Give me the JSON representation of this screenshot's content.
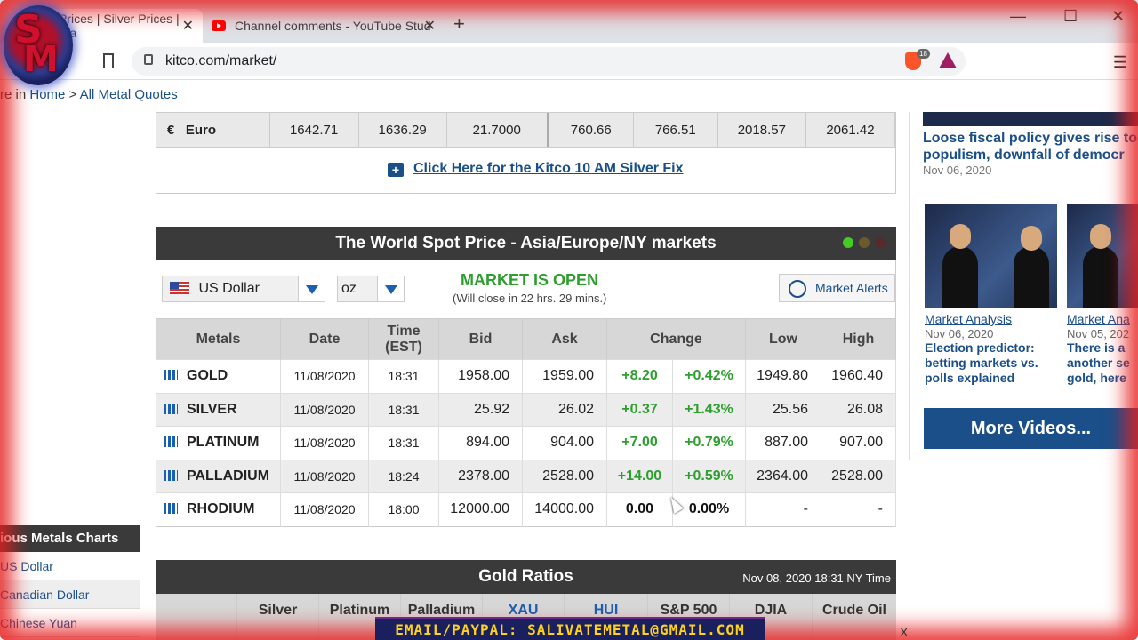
{
  "browser": {
    "tabs": [
      {
        "label": "Prices | Silver Prices | Pla",
        "active": true
      },
      {
        "label": "Channel comments - YouTube Stud",
        "active": false
      }
    ],
    "new_tab": "+",
    "close": "✕",
    "url": "kitco.com/market/",
    "brave_badge": "18",
    "win_min": "—",
    "win_max": "☐",
    "win_close": "✕",
    "menu": "☰"
  },
  "breadcrumb": {
    "prefix": "re in ",
    "home": "Home",
    "sep": " > ",
    "current": "All Metal Quotes"
  },
  "euro_row": {
    "symbol": "€",
    "label": "Euro",
    "values": [
      "1642.71",
      "1636.29",
      "21.7000",
      "760.66",
      "766.51",
      "2018.57",
      "2061.42"
    ]
  },
  "silver_fix": {
    "label": "Click Here for the Kitco 10 AM Silver Fix",
    "icon": "+"
  },
  "spot": {
    "title": "The World Spot Price - Asia/Europe/NY markets",
    "currency": "US Dollar",
    "unit": "oz",
    "status": "MARKET IS OPEN",
    "close_note": "(Will close in 22 hrs. 29 mins.)",
    "alerts": "Market Alerts",
    "dot_colors": [
      "#44cc22",
      "#6b5a2a",
      "#5a2a2a"
    ],
    "headers": [
      "Metals",
      "Date",
      "Time (EST)",
      "Bid",
      "Ask",
      "Change",
      "Low",
      "High"
    ],
    "rows": [
      {
        "metal": "GOLD",
        "date": "11/08/2020",
        "time": "18:31",
        "bid": "1958.00",
        "ask": "1959.00",
        "chg": "+8.20",
        "pct": "+0.42%",
        "low": "1949.80",
        "high": "1960.40"
      },
      {
        "metal": "SILVER",
        "date": "11/08/2020",
        "time": "18:31",
        "bid": "25.92",
        "ask": "26.02",
        "chg": "+0.37",
        "pct": "+1.43%",
        "low": "25.56",
        "high": "26.08"
      },
      {
        "metal": "PLATINUM",
        "date": "11/08/2020",
        "time": "18:31",
        "bid": "894.00",
        "ask": "904.00",
        "chg": "+7.00",
        "pct": "+0.79%",
        "low": "887.00",
        "high": "907.00"
      },
      {
        "metal": "PALLADIUM",
        "date": "11/08/2020",
        "time": "18:24",
        "bid": "2378.00",
        "ask": "2528.00",
        "chg": "+14.00",
        "pct": "+0.59%",
        "low": "2364.00",
        "high": "2528.00"
      },
      {
        "metal": "RHODIUM",
        "date": "11/08/2020",
        "time": "18:00",
        "bid": "12000.00",
        "ask": "14000.00",
        "chg": "0.00",
        "pct": "0.00%",
        "low": "-",
        "high": "-"
      }
    ]
  },
  "ratios": {
    "title": "Gold Ratios",
    "time": "Nov 08, 2020 18:31 NY Time",
    "columns": [
      "",
      "Silver",
      "Platinum",
      "Palladium",
      "XAU",
      "HUI",
      "S&P 500",
      "DJIA",
      "Crude Oil"
    ]
  },
  "left_sidebar": {
    "heading": "ious Metals Charts",
    "items": [
      "US Dollar",
      "Canadian Dollar",
      "Chinese Yuan"
    ]
  },
  "right_sidebar": {
    "headline": "Loose fiscal policy gives rise to populism, downfall of democr",
    "headline_date": "Nov 06, 2020",
    "videos": [
      {
        "category": "Market Analysis",
        "date": "Nov 06, 2020",
        "title": "Election predictor: betting markets vs. polls explained"
      },
      {
        "category": "Market Ana",
        "date": "Nov 05, 202",
        "title": "There is a another se gold, here"
      }
    ],
    "more_videos": "More Videos..."
  },
  "overlay": {
    "email": "EMAIL/PAYPAL: SALIVATEMETAL@GMAIL.COM",
    "x_mark": "X",
    "logo_s": "S",
    "logo_m": "M"
  }
}
